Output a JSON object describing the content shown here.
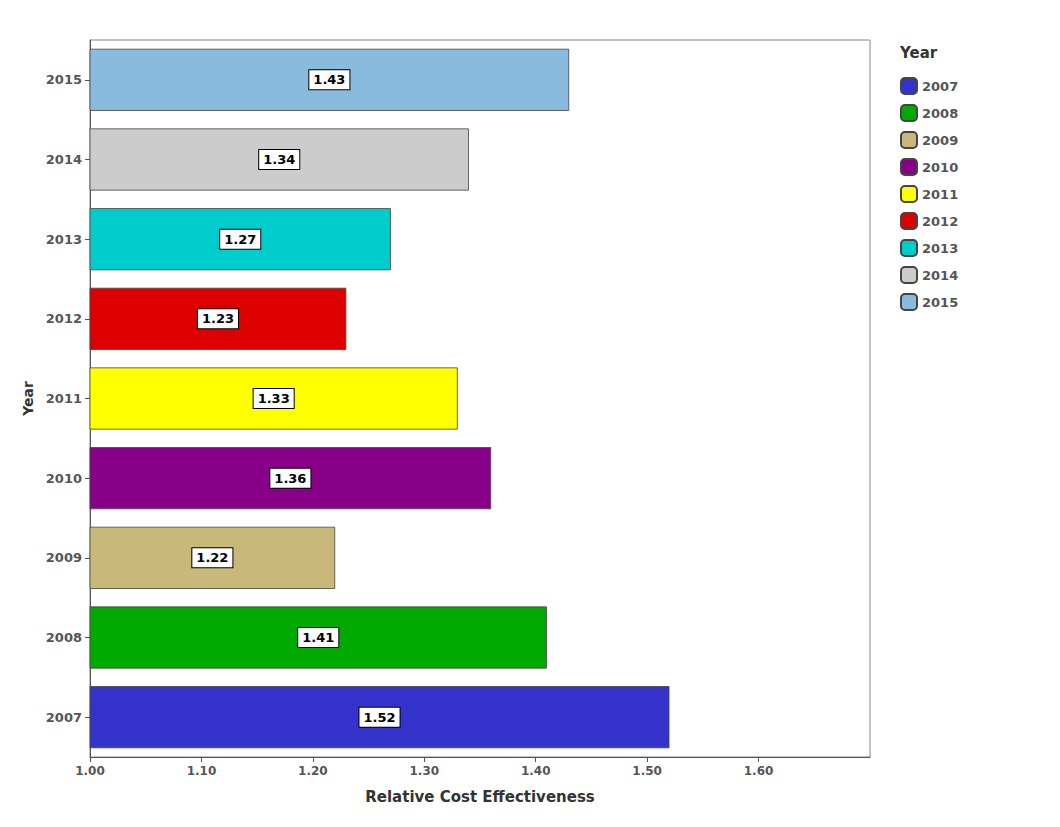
{
  "chart_data": {
    "type": "bar",
    "orientation": "horizontal",
    "xlabel": "Relative Cost Effectiveness",
    "ylabel": "Year",
    "categories": [
      "2007",
      "2008",
      "2009",
      "2010",
      "2011",
      "2012",
      "2013",
      "2014",
      "2015"
    ],
    "values": [
      1.52,
      1.41,
      1.22,
      1.36,
      1.33,
      1.23,
      1.27,
      1.34,
      1.43
    ],
    "colors": [
      "#3333cc",
      "#00aa00",
      "#c8b87a",
      "#880088",
      "#ffff00",
      "#dd0000",
      "#00cccc",
      "#cccccc",
      "#88bbdd"
    ],
    "xlim": [
      1.0,
      1.7
    ],
    "xticks": [
      {
        "value": 1.0,
        "label": "1.00"
      },
      {
        "value": 1.1,
        "label": "1.10"
      },
      {
        "value": 1.2,
        "label": "1.20"
      },
      {
        "value": 1.3,
        "label": "1.30"
      },
      {
        "value": 1.4,
        "label": "1.40"
      },
      {
        "value": 1.5,
        "label": "1.50"
      },
      {
        "value": 1.6,
        "label": "1.60"
      }
    ],
    "data_labels": true,
    "grid": false,
    "legend": "right",
    "legend_title": "Year"
  }
}
